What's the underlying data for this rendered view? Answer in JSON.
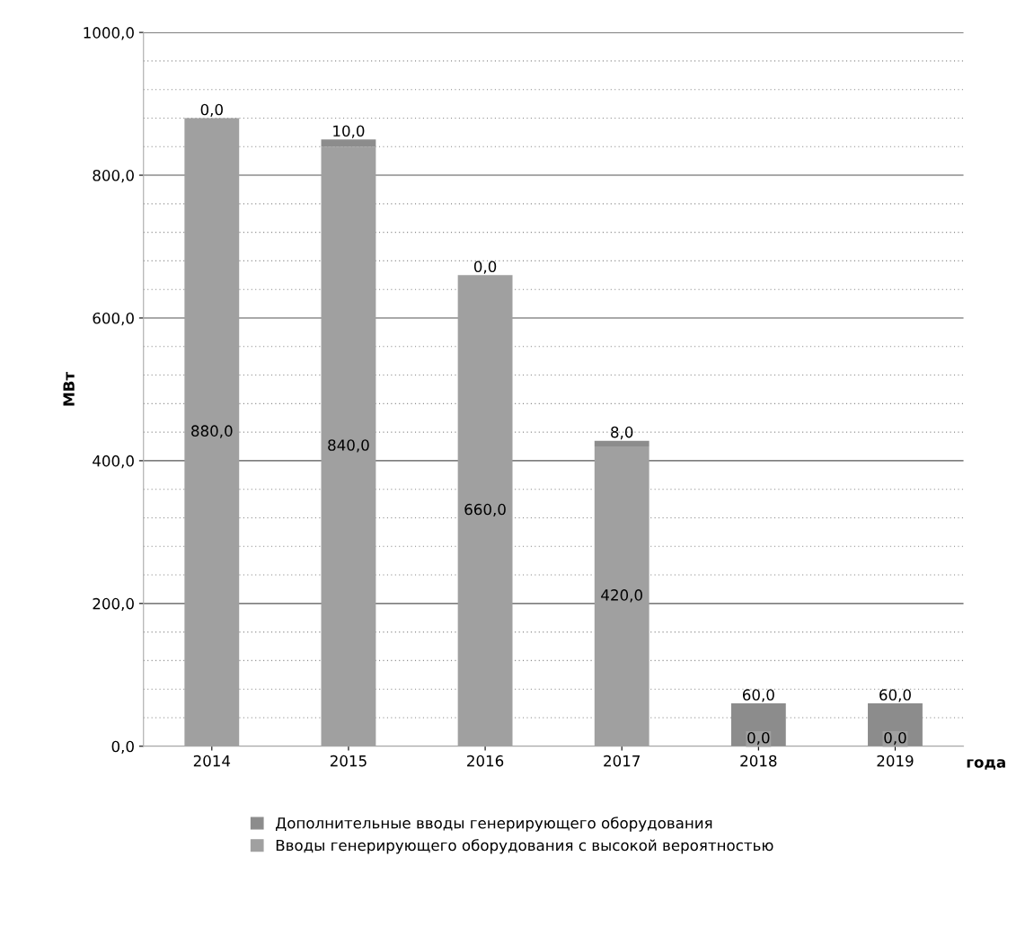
{
  "chart_data": {
    "type": "bar",
    "stacked": true,
    "categories": [
      "2014",
      "2015",
      "2016",
      "2017",
      "2018",
      "2019"
    ],
    "series": [
      {
        "name": "Вводы генерирующего оборудования с высокой вероятностью",
        "color": "#a0a0a0",
        "values": [
          880,
          840,
          660,
          420,
          0,
          0
        ],
        "value_labels": [
          "880,0",
          "840,0",
          "660,0",
          "420,0",
          "0,0",
          "0,0"
        ]
      },
      {
        "name": "Дополнительные вводы генерирующего оборудования",
        "color": "#8c8c8c",
        "values": [
          0,
          10,
          0,
          8,
          60,
          60
        ],
        "value_labels": [
          "0,0",
          "10,0",
          "0,0",
          "8,0",
          "60,0",
          "60,0"
        ]
      }
    ],
    "ylabel": "МВт",
    "xlabel": "года",
    "ylim": [
      0,
      1000
    ],
    "yticks": [
      {
        "value": 0,
        "label": "0,0"
      },
      {
        "value": 200,
        "label": "200,0"
      },
      {
        "value": 400,
        "label": "400,0"
      },
      {
        "value": 600,
        "label": "600,0"
      },
      {
        "value": 800,
        "label": "800,0"
      },
      {
        "value": 1000,
        "label": "1000,0"
      }
    ],
    "grid": "y",
    "legend": "bottom"
  }
}
